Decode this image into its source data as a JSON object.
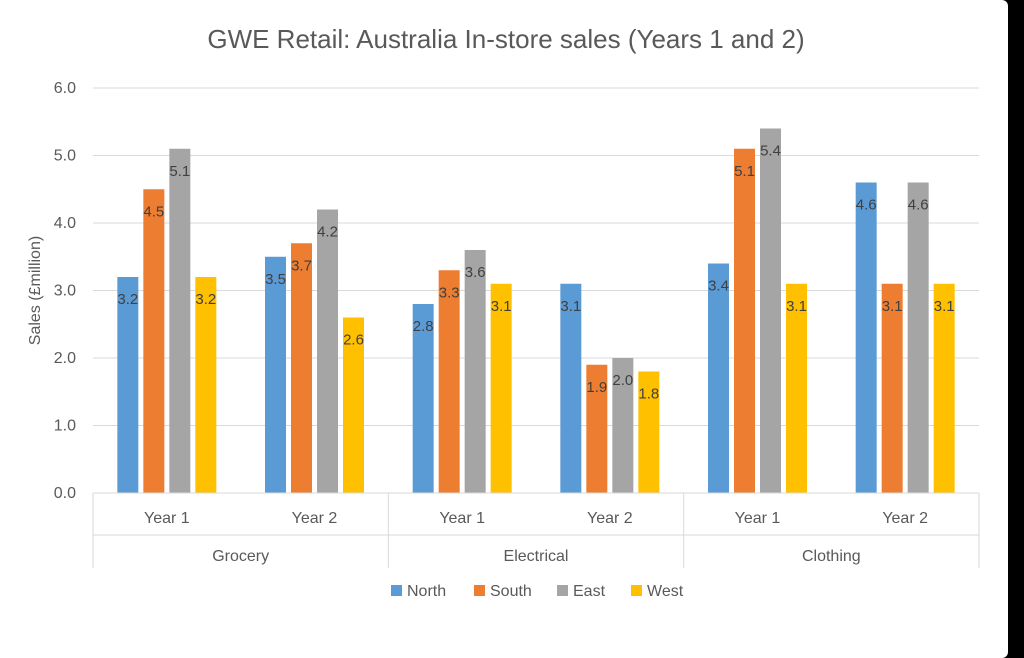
{
  "chart_data": {
    "type": "bar",
    "title": "GWE Retail: Australia In-store sales (Years 1 and 2)",
    "xlabel": "",
    "ylabel": "Sales (£million)",
    "ylim": [
      0,
      6
    ],
    "yticks": [
      "0.0",
      "1.0",
      "2.0",
      "3.0",
      "4.0",
      "5.0",
      "6.0"
    ],
    "grid": true,
    "legend_position": "bottom",
    "groups": [
      "Grocery",
      "Electrical",
      "Clothing"
    ],
    "categories": [
      "Year 1",
      "Year 2",
      "Year 1",
      "Year 2",
      "Year 1",
      "Year 2"
    ],
    "series": [
      {
        "name": "North",
        "color": "#5b9bd5",
        "values": [
          3.2,
          3.5,
          2.8,
          3.1,
          3.4,
          4.6
        ],
        "labels": [
          "3.2",
          "3.5",
          "2.8",
          "3.1",
          "3.4",
          "4.6"
        ]
      },
      {
        "name": "South",
        "color": "#ed7d31",
        "values": [
          4.5,
          3.7,
          3.3,
          1.9,
          5.1,
          3.1
        ],
        "labels": [
          "4.5",
          "3.7",
          "3.3",
          "1.9",
          "5.1",
          "3.1"
        ]
      },
      {
        "name": "East",
        "color": "#a5a5a5",
        "values": [
          5.1,
          4.2,
          3.6,
          2.0,
          5.4,
          4.6
        ],
        "labels": [
          "5.1",
          "4.2",
          "3.6",
          "2.0",
          "5.4",
          "4.6"
        ]
      },
      {
        "name": "West",
        "color": "#ffc000",
        "values": [
          3.2,
          2.6,
          3.1,
          1.8,
          3.1,
          3.1
        ],
        "labels": [
          "3.2",
          "2.6",
          "3.1",
          "1.8",
          "3.1",
          "3.1"
        ]
      }
    ]
  }
}
